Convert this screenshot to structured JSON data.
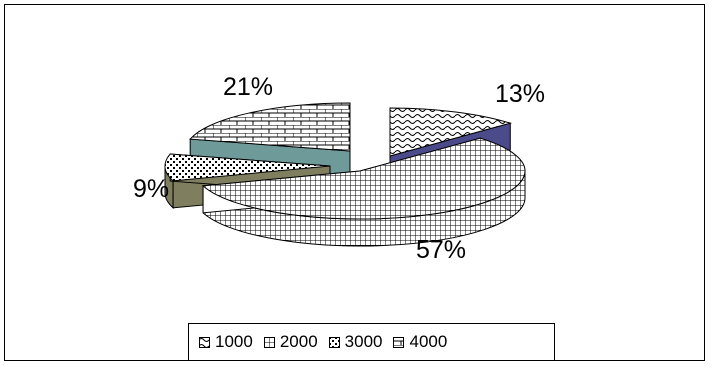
{
  "chart_data": {
    "type": "pie",
    "style": "3d-exploded",
    "categories": [
      "1000",
      "2000",
      "3000",
      "4000"
    ],
    "values": [
      13,
      57,
      9,
      21
    ],
    "data_labels": [
      "13%",
      "57%",
      "9%",
      "21%"
    ],
    "title": "",
    "legend_position": "bottom"
  }
}
